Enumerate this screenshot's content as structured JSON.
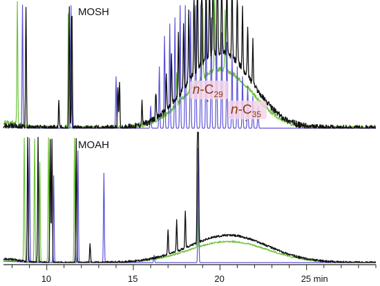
{
  "chart_data": {
    "type": "line",
    "xlabel": "",
    "ylabel": "",
    "xlim": [
      7.5,
      29.0
    ],
    "x_ticks": [
      10,
      15,
      20,
      25
    ],
    "x_tick_labels": [
      "10",
      "15",
      "20",
      "25 min"
    ],
    "grid": false,
    "legend": "none",
    "colors": {
      "black_trace": "#111111",
      "green_trace": "#6dc23b",
      "blue_trace": "#5a52d8",
      "annotation": "#8b3a12",
      "annotation_box": "#f3d6ea"
    },
    "panels": [
      {
        "label": "MOSH",
        "hump_center_min": 20.0,
        "hump_width_min": 2.6,
        "annotations": [
          {
            "text_italic": "n",
            "text": "-C",
            "subscript": "29",
            "x_min": 19.3
          },
          {
            "text_italic": "n",
            "text": "-C",
            "subscript": "35",
            "x_min": 21.5
          }
        ],
        "series": [
          {
            "color": "#111111",
            "hump_level": 0.62,
            "tail_level": 0.02,
            "peaks": [
              [
                8.8,
                1.0
              ],
              [
                10.7,
                0.22
              ],
              [
                11.3,
                1.0
              ],
              [
                11.45,
                1.0
              ],
              [
                14.1,
                0.35
              ],
              [
                14.2,
                0.38
              ],
              [
                15.5,
                0.18
              ],
              [
                16.3,
                0.22
              ],
              [
                16.9,
                0.3
              ],
              [
                17.2,
                0.4
              ],
              [
                17.6,
                0.5
              ],
              [
                17.9,
                0.55
              ],
              [
                18.2,
                0.6
              ],
              [
                18.5,
                0.7
              ],
              [
                18.7,
                0.85
              ],
              [
                18.95,
                1.0
              ],
              [
                19.2,
                1.0
              ],
              [
                19.4,
                0.95
              ],
              [
                19.6,
                1.0
              ],
              [
                19.85,
                0.95
              ],
              [
                20.1,
                0.9
              ],
              [
                20.4,
                0.8
              ],
              [
                20.7,
                0.7
              ],
              [
                21.0,
                0.6
              ],
              [
                21.3,
                0.5
              ],
              [
                21.6,
                0.42
              ],
              [
                21.9,
                0.35
              ]
            ]
          },
          {
            "color": "#6dc23b",
            "hump_level": 0.48,
            "tail_level": 0.05,
            "peaks": [
              [
                8.3,
                1.0
              ],
              [
                11.25,
                1.0
              ],
              [
                17.5,
                0.25
              ],
              [
                18.3,
                0.4
              ],
              [
                19.0,
                0.55
              ],
              [
                19.7,
                0.6
              ],
              [
                20.3,
                0.5
              ]
            ]
          },
          {
            "color": "#5a52d8",
            "hump_level": 0.0,
            "tail_level": 0.01,
            "peaks": [
              [
                8.6,
                1.0
              ],
              [
                11.4,
                1.0
              ],
              [
                14.0,
                0.42
              ],
              [
                16.0,
                0.18
              ],
              [
                16.5,
                0.5
              ],
              [
                16.8,
                0.75
              ],
              [
                17.1,
                0.85
              ],
              [
                17.4,
                0.9
              ],
              [
                17.7,
                1.0
              ],
              [
                18.0,
                1.0
              ],
              [
                18.3,
                0.95
              ],
              [
                18.6,
                1.0
              ],
              [
                18.9,
                1.0
              ],
              [
                19.2,
                0.95
              ],
              [
                19.5,
                0.9
              ],
              [
                19.8,
                0.85
              ],
              [
                20.1,
                0.78
              ],
              [
                20.4,
                0.7
              ],
              [
                20.7,
                0.6
              ],
              [
                21.0,
                0.5
              ],
              [
                21.3,
                0.42
              ],
              [
                21.6,
                0.34
              ],
              [
                21.9,
                0.26
              ],
              [
                22.2,
                0.18
              ]
            ]
          }
        ]
      },
      {
        "label": "MOAH",
        "hump_center_min": 20.5,
        "hump_width_min": 3.2,
        "annotations": [],
        "series": [
          {
            "color": "#111111",
            "hump_level": 0.22,
            "tail_level": 0.03,
            "peaks": [
              [
                8.9,
                1.0
              ],
              [
                9.5,
                1.0
              ],
              [
                10.2,
                1.0
              ],
              [
                10.3,
                1.0
              ],
              [
                11.7,
                1.0
              ],
              [
                12.5,
                0.15
              ],
              [
                17.0,
                0.2
              ],
              [
                17.5,
                0.25
              ],
              [
                18.0,
                0.3
              ],
              [
                18.7,
                1.0
              ],
              [
                18.75,
                1.0
              ]
            ]
          },
          {
            "color": "#6dc23b",
            "hump_level": 0.17,
            "tail_level": 0.02,
            "peaks": [
              [
                8.7,
                1.0
              ],
              [
                9.3,
                1.0
              ],
              [
                9.6,
                0.8
              ],
              [
                10.1,
                1.0
              ],
              [
                11.6,
                1.0
              ],
              [
                18.7,
                0.6
              ]
            ]
          },
          {
            "color": "#5a52d8",
            "hump_level": 0.0,
            "tail_level": 0.01,
            "peaks": [
              [
                9.0,
                1.0
              ],
              [
                10.4,
                0.7
              ],
              [
                11.8,
                0.9
              ],
              [
                13.3,
                0.72
              ],
              [
                16.2,
                0.06
              ],
              [
                18.75,
                1.0
              ]
            ]
          }
        ]
      }
    ]
  }
}
